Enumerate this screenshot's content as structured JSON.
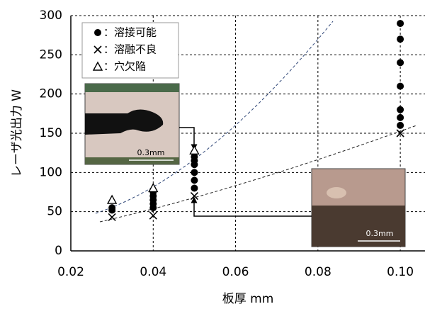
{
  "chart_data": {
    "type": "scatter",
    "xlabel": "板厚 mm",
    "ylabel": "レーザ光出力 W",
    "xlim": [
      0.02,
      0.106
    ],
    "ylim": [
      0,
      300
    ],
    "xticks": [
      0.02,
      0.04,
      0.06,
      0.08,
      {
        "value": 0.1,
        "label": "0.10"
      }
    ],
    "yticks": [
      0,
      50,
      100,
      150,
      200,
      250,
      300
    ],
    "grid": true,
    "series": [
      {
        "name": "：溶接可能",
        "marker": "circle",
        "color": "#000000",
        "x": [
          0.03,
          0.03,
          0.04,
          0.04,
          0.04,
          0.04,
          0.04,
          0.05,
          0.05,
          0.05,
          0.05,
          0.05,
          0.05,
          0.1,
          0.1,
          0.1,
          0.1,
          0.1,
          0.1,
          0.1
        ],
        "values": [
          52,
          55,
          55,
          60,
          65,
          70,
          75,
          80,
          90,
          100,
          110,
          115,
          120,
          160,
          170,
          180,
          210,
          240,
          270,
          290
        ]
      },
      {
        "name": "：溶融不良",
        "marker": "cross",
        "color": "#000000",
        "x": [
          0.03,
          0.04,
          0.05,
          0.1
        ],
        "values": [
          43,
          45,
          70,
          150
        ]
      },
      {
        "name": "：穴欠陥",
        "marker": "triangle",
        "color": "#000000",
        "x": [
          0.03,
          0.04,
          0.05
        ],
        "values": [
          65,
          80,
          128
        ]
      }
    ],
    "annotations": [
      "0.3mm",
      "0.3mm"
    ]
  }
}
